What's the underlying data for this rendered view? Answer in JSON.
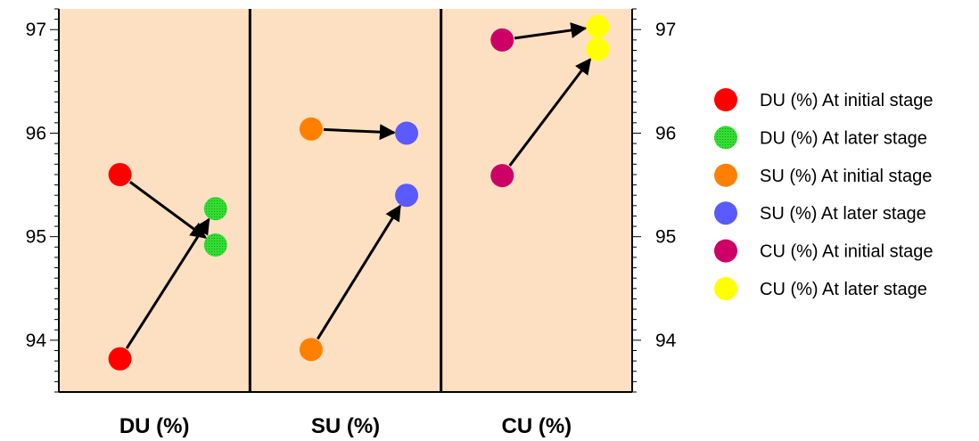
{
  "chart_data": {
    "type": "scatter",
    "ylim": [
      93.5,
      97.2
    ],
    "yticks": [
      "94",
      "95",
      "96",
      "97"
    ],
    "categories": [
      "DU (%)",
      "SU (%)",
      "CU (%)"
    ],
    "legend_position": "right",
    "series": [
      {
        "name": "DU (%) At initial stage",
        "color": "#ff0000",
        "pattern": false
      },
      {
        "name": "DU (%) At later stage",
        "color": "#33dd33",
        "pattern": true
      },
      {
        "name": "SU (%) At initial stage",
        "color": "#ff8000",
        "pattern": false
      },
      {
        "name": "SU (%) At later stage",
        "color": "#5a5aff",
        "pattern": false
      },
      {
        "name": "CU (%) At initial stage",
        "color": "#cc0066",
        "pattern": false
      },
      {
        "name": "CU (%) At later stage",
        "color": "#ffff00",
        "pattern": false
      }
    ],
    "points": [
      {
        "series": 0,
        "panel": 0,
        "pos": "initial",
        "y": 95.6
      },
      {
        "series": 0,
        "panel": 0,
        "pos": "initial",
        "y": 93.82
      },
      {
        "series": 1,
        "panel": 0,
        "pos": "later",
        "y": 95.27
      },
      {
        "series": 1,
        "panel": 0,
        "pos": "later",
        "y": 94.92
      },
      {
        "series": 2,
        "panel": 1,
        "pos": "initial",
        "y": 96.04
      },
      {
        "series": 2,
        "panel": 1,
        "pos": "initial",
        "y": 93.91
      },
      {
        "series": 3,
        "panel": 1,
        "pos": "later",
        "y": 96.0
      },
      {
        "series": 3,
        "panel": 1,
        "pos": "later",
        "y": 95.4
      },
      {
        "series": 4,
        "panel": 2,
        "pos": "initial",
        "y": 96.9
      },
      {
        "series": 4,
        "panel": 2,
        "pos": "initial",
        "y": 95.59
      },
      {
        "series": 5,
        "panel": 2,
        "pos": "later",
        "y": 97.03
      },
      {
        "series": 5,
        "panel": 2,
        "pos": "later",
        "y": 96.81
      }
    ],
    "arrows": [
      {
        "panel": 0,
        "from_y": 95.6,
        "to_y": 94.92
      },
      {
        "panel": 0,
        "from_y": 93.82,
        "to_y": 95.27
      },
      {
        "panel": 1,
        "from_y": 96.04,
        "to_y": 96.0
      },
      {
        "panel": 1,
        "from_y": 93.91,
        "to_y": 95.4
      },
      {
        "panel": 2,
        "from_y": 96.9,
        "to_y": 97.03
      },
      {
        "panel": 2,
        "from_y": 95.59,
        "to_y": 96.81
      }
    ],
    "background_color": "#fde0c2"
  }
}
